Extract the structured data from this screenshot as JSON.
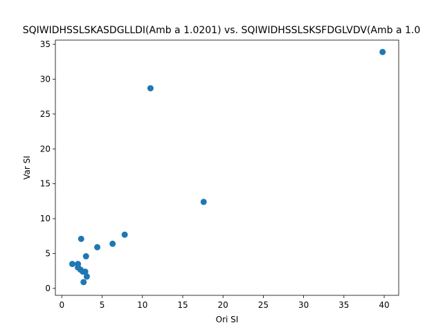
{
  "chart_data": {
    "type": "scatter",
    "title": "SQIWIDHSSLSKASDGLLDI(Amb a 1.0201) vs. SQIWIDHSSLSKSFDGLVDV(Amb a 1.0",
    "xlabel": "Ori SI",
    "ylabel": "Var SI",
    "xlim": [
      -0.8,
      41.8
    ],
    "ylim": [
      -1.0,
      35.6
    ],
    "xticks": [
      0,
      5,
      10,
      15,
      20,
      25,
      30,
      35,
      40
    ],
    "yticks": [
      0,
      5,
      10,
      15,
      20,
      25,
      30,
      35
    ],
    "grid": false,
    "color": "#1f77b4",
    "points": [
      {
        "x": 1.3,
        "y": 3.5
      },
      {
        "x": 2.0,
        "y": 3.5
      },
      {
        "x": 2.0,
        "y": 3.0
      },
      {
        "x": 2.3,
        "y": 2.7
      },
      {
        "x": 2.6,
        "y": 2.4
      },
      {
        "x": 2.9,
        "y": 2.4
      },
      {
        "x": 3.1,
        "y": 1.7
      },
      {
        "x": 2.7,
        "y": 0.9
      },
      {
        "x": 2.4,
        "y": 7.1
      },
      {
        "x": 3.0,
        "y": 4.6
      },
      {
        "x": 4.4,
        "y": 5.9
      },
      {
        "x": 6.3,
        "y": 6.4
      },
      {
        "x": 7.8,
        "y": 7.7
      },
      {
        "x": 11.0,
        "y": 28.7
      },
      {
        "x": 17.6,
        "y": 12.4
      },
      {
        "x": 39.8,
        "y": 33.9
      }
    ]
  }
}
